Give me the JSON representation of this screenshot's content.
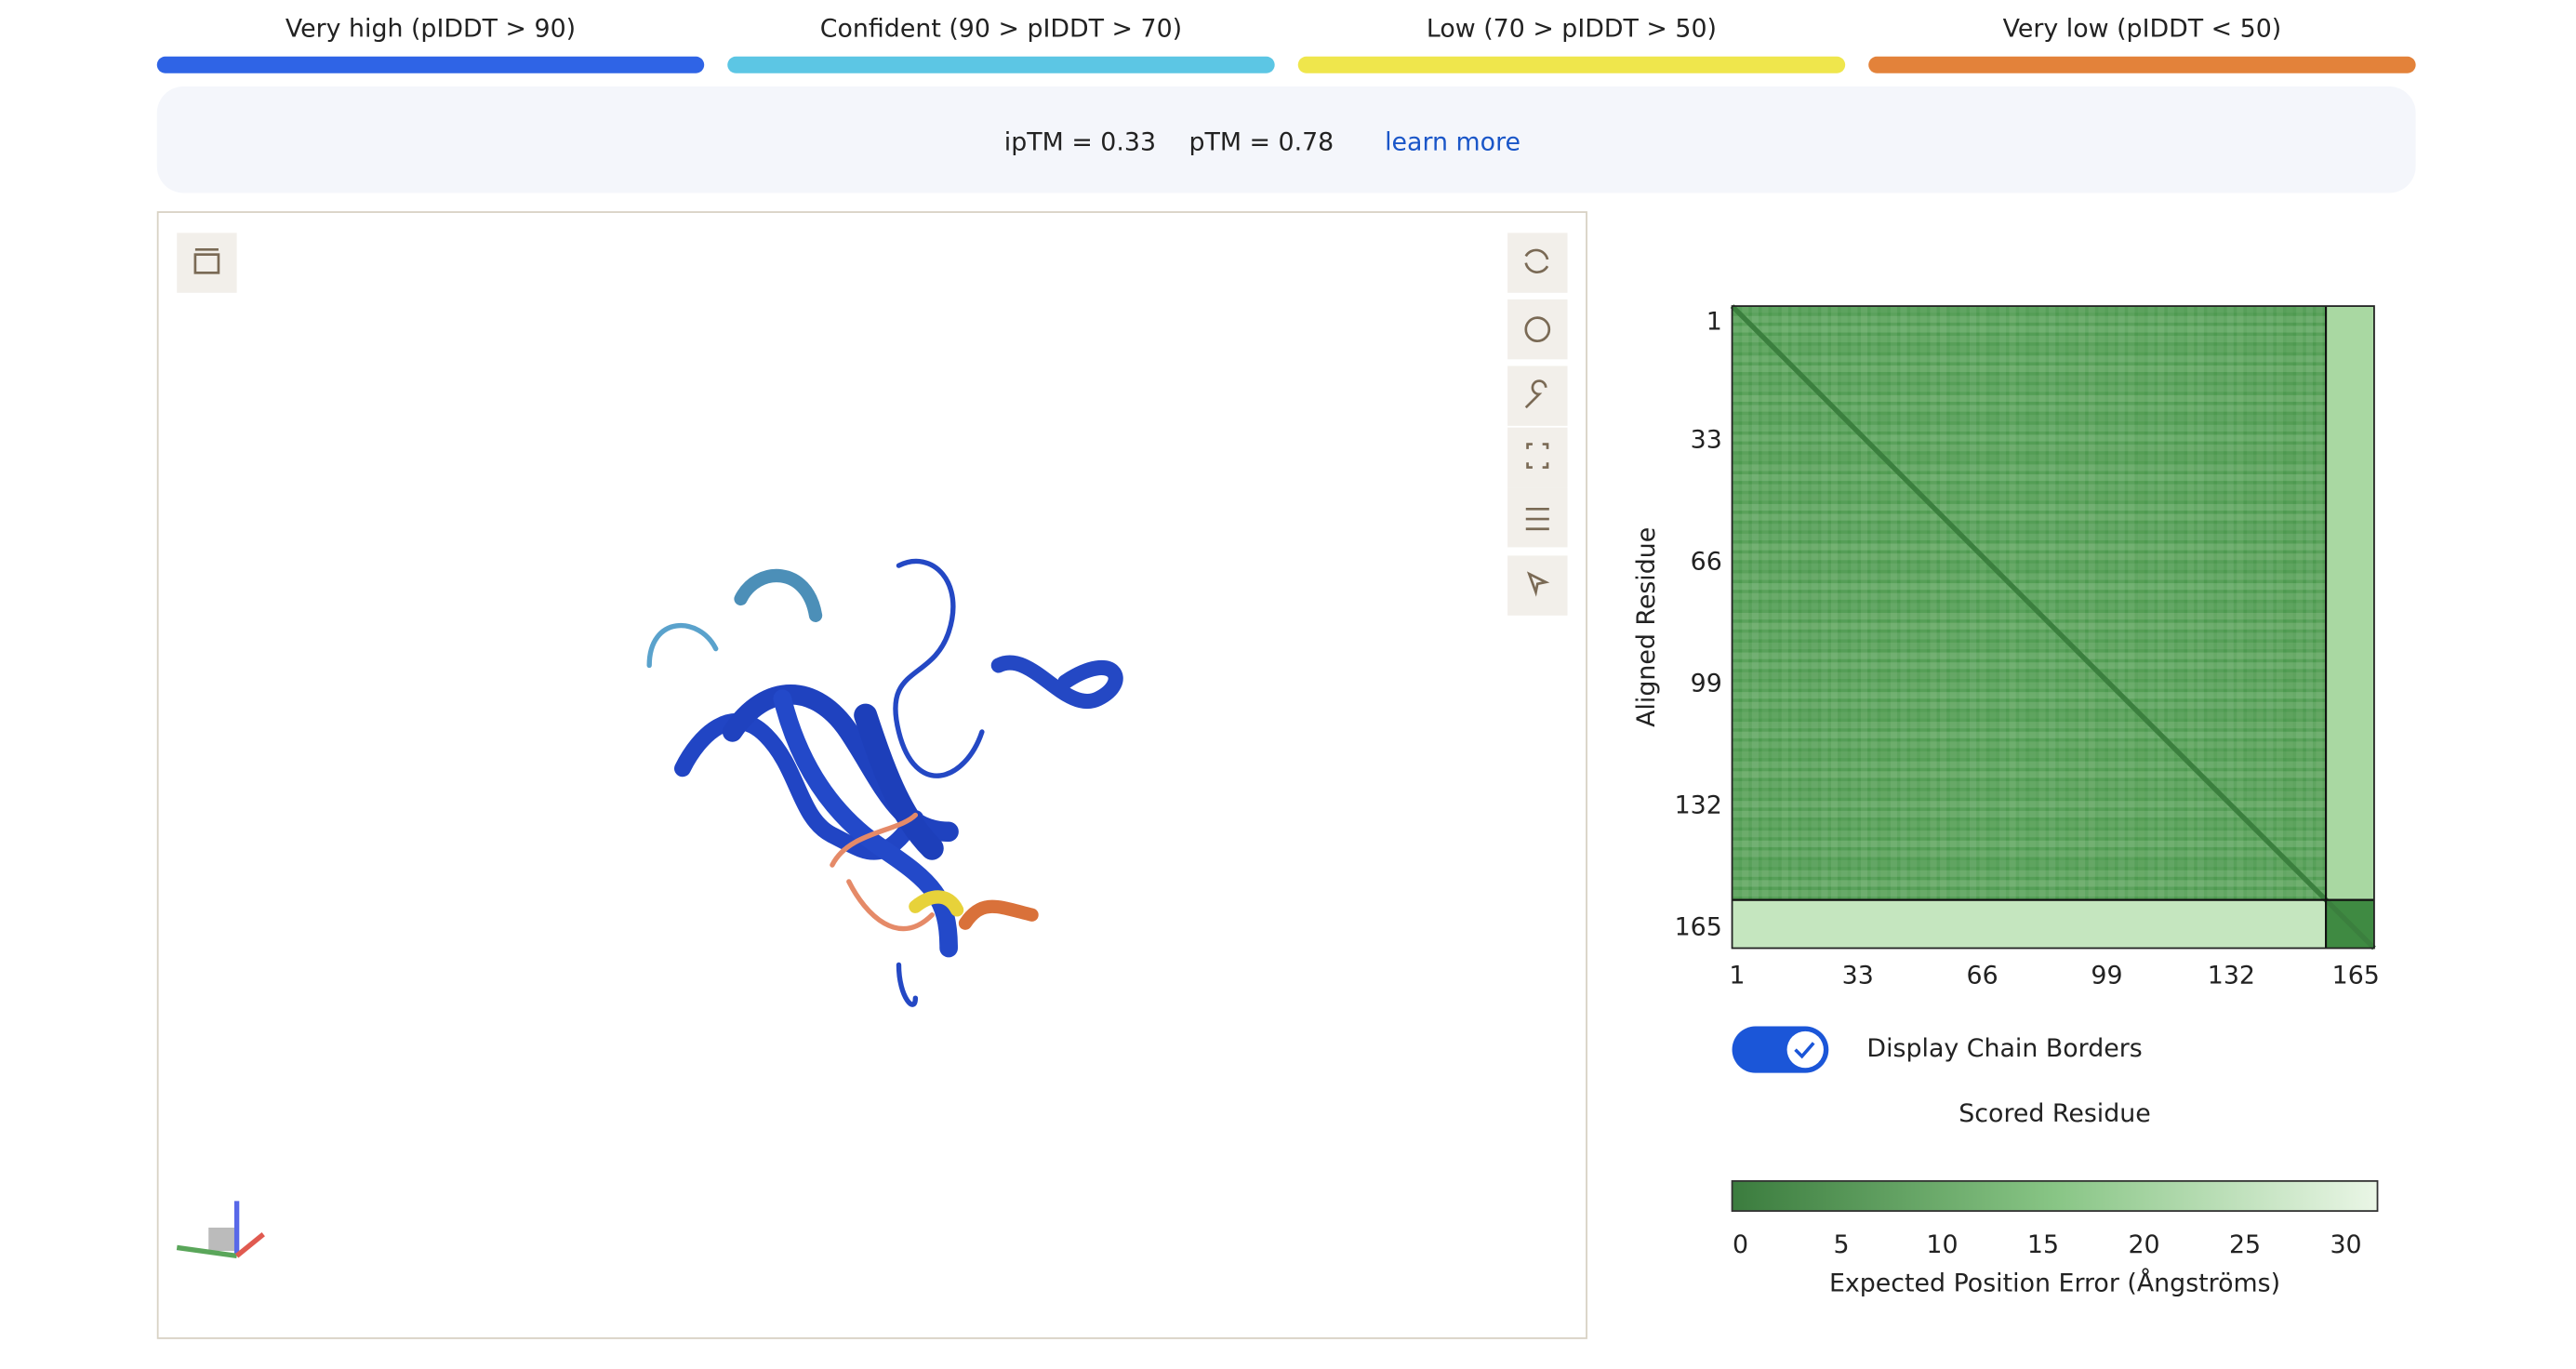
{
  "legend": [
    {
      "label": "Very high (pIDDT > 90)",
      "color": "#2f64e6"
    },
    {
      "label": "Confident (90 > pIDDT > 70)",
      "color": "#5cc6e4"
    },
    {
      "label": "Low (70 > pIDDT > 50)",
      "color": "#efe64c"
    },
    {
      "label": "Very low (pIDDT < 50)",
      "color": "#e3823a"
    }
  ],
  "scores": {
    "iptm": "ipTM = 0.33",
    "ptm": "pTM = 0.78",
    "link": "learn more"
  },
  "pae": {
    "y_label": "Aligned Residue",
    "ticks": [
      1,
      33,
      66,
      99,
      132,
      165
    ],
    "toggle": "Display Chain Borders",
    "x_label": "Scored Residue",
    "colorbar": {
      "ticks": [
        0,
        5,
        10,
        15,
        20,
        25,
        30
      ],
      "label": "Expected Position Error (Ångströms)"
    }
  }
}
